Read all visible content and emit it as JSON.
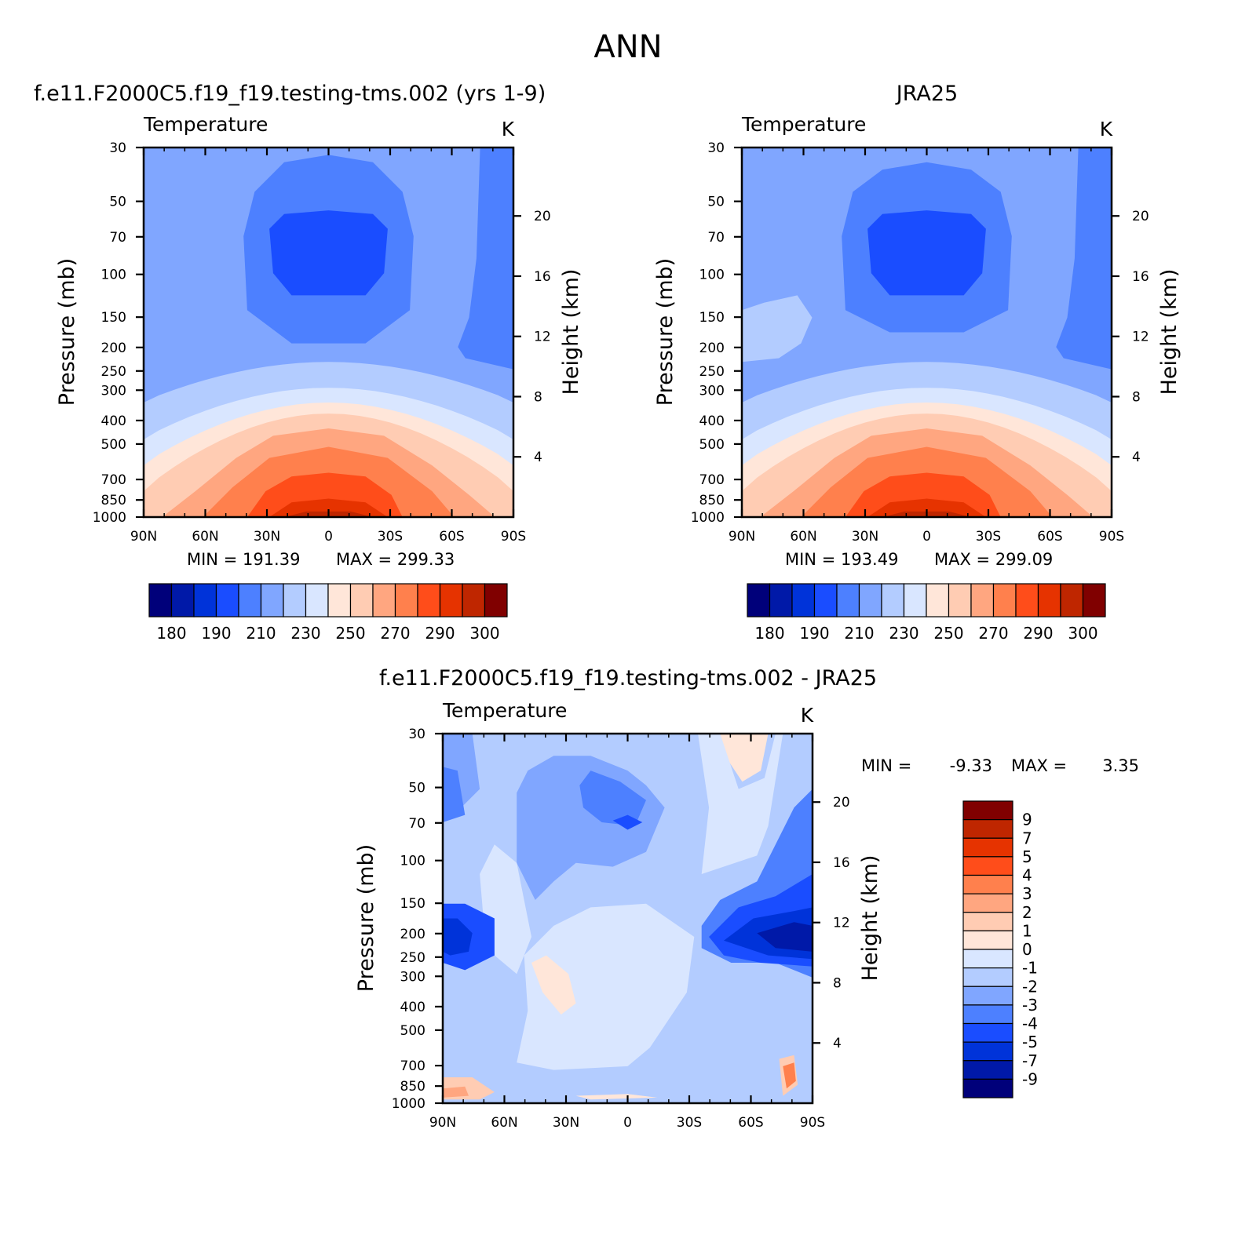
{
  "figure": {
    "title": "ANN",
    "colors": {
      "sequential": [
        "#00007a",
        "#0019a8",
        "#0033d9",
        "#1a4dff",
        "#4d80ff",
        "#80a6ff",
        "#b3ccff",
        "#d9e6ff",
        "#ffe6d9",
        "#ffccb3",
        "#ffa680",
        "#ff804d",
        "#ff4d1a",
        "#e63300",
        "#bf2600",
        "#800000"
      ],
      "difference": [
        "#00007a",
        "#0019a8",
        "#0033d9",
        "#1a4dff",
        "#4d80ff",
        "#80a6ff",
        "#b3ccff",
        "#d9e6ff",
        "#ffe6d9",
        "#ffccb3",
        "#ffa680",
        "#ff804d",
        "#ff4d1a",
        "#e63300",
        "#bf2600",
        "#800000"
      ]
    }
  },
  "chart_data": [
    {
      "type": "heatmap",
      "title": "f.e11.F2000C5.f19_f19.testing-tms.002 (yrs 1-9)",
      "var_label": "Temperature",
      "units": "K",
      "xlabel": "",
      "ylabel": "Pressure (mb)",
      "y2label": "Height (km)",
      "x_ticks": [
        "90N",
        "60N",
        "30N",
        "0",
        "30S",
        "60S",
        "90S"
      ],
      "y_ticks": [
        "30",
        "50",
        "70",
        "100",
        "150",
        "200",
        "250",
        "300",
        "400",
        "500",
        "700",
        "850",
        "1000"
      ],
      "y2_ticks": [
        "20",
        "16",
        "12",
        "8",
        "4"
      ],
      "min_label": "MIN = 191.39",
      "max_label": "MAX = 299.33",
      "min": 191.39,
      "max": 299.33,
      "colorbar_labels": [
        "180",
        "190",
        "210",
        "230",
        "250",
        "270",
        "290",
        "300"
      ]
    },
    {
      "type": "heatmap",
      "title": "JRA25",
      "var_label": "Temperature",
      "units": "K",
      "xlabel": "",
      "ylabel": "Pressure (mb)",
      "y2label": "Height (km)",
      "x_ticks": [
        "90N",
        "60N",
        "30N",
        "0",
        "30S",
        "60S",
        "90S"
      ],
      "y_ticks": [
        "30",
        "50",
        "70",
        "100",
        "150",
        "200",
        "250",
        "300",
        "400",
        "500",
        "700",
        "850",
        "1000"
      ],
      "y2_ticks": [
        "20",
        "16",
        "12",
        "8",
        "4"
      ],
      "min_label": "MIN = 193.49",
      "max_label": "MAX = 299.09",
      "min": 193.49,
      "max": 299.09,
      "colorbar_labels": [
        "180",
        "190",
        "210",
        "230",
        "250",
        "270",
        "290",
        "300"
      ]
    },
    {
      "type": "heatmap",
      "title": "f.e11.F2000C5.f19_f19.testing-tms.002 - JRA25",
      "var_label": "Temperature",
      "units": "K",
      "xlabel": "",
      "ylabel": "Pressure (mb)",
      "y2label": "Height (km)",
      "x_ticks": [
        "90N",
        "60N",
        "30N",
        "0",
        "30S",
        "60S",
        "90S"
      ],
      "y_ticks": [
        "30",
        "50",
        "70",
        "100",
        "150",
        "200",
        "250",
        "300",
        "400",
        "500",
        "700",
        "850",
        "1000"
      ],
      "y2_ticks": [
        "20",
        "16",
        "12",
        "8",
        "4"
      ],
      "min_label": "MIN =",
      "min_value": "-9.33",
      "max_label": "MAX =",
      "max_value": "3.35",
      "min": -9.33,
      "max": 3.35,
      "colorbar_labels": [
        "9",
        "7",
        "5",
        "4",
        "3",
        "2",
        "1",
        "0",
        "-1",
        "-2",
        "-3",
        "-4",
        "-5",
        "-7",
        "-9"
      ]
    }
  ]
}
